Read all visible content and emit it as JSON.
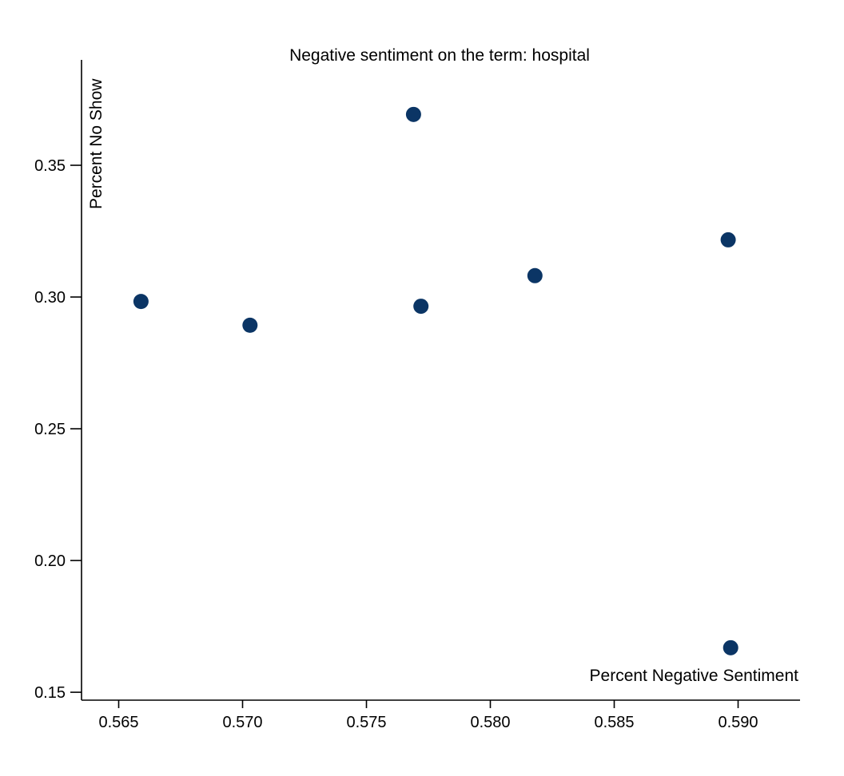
{
  "chart_data": {
    "type": "scatter",
    "title": "Negative sentiment on the term: hospital",
    "xlabel": "Percent Negative Sentiment",
    "ylabel": "Percent No Show",
    "xlim": [
      0.5635,
      0.5925
    ],
    "ylim": [
      0.147,
      0.39
    ],
    "x_ticks": [
      "0.565",
      "0.570",
      "0.575",
      "0.580",
      "0.585",
      "0.590"
    ],
    "y_ticks": [
      "0.15",
      "0.20",
      "0.25",
      "0.30",
      "0.35"
    ],
    "grid": false,
    "marker_color": "#0b3565",
    "points": [
      {
        "x": 0.5659,
        "y": 0.2983
      },
      {
        "x": 0.5703,
        "y": 0.2893
      },
      {
        "x": 0.5769,
        "y": 0.3693
      },
      {
        "x": 0.5772,
        "y": 0.2965
      },
      {
        "x": 0.5818,
        "y": 0.3081
      },
      {
        "x": 0.5896,
        "y": 0.3217
      },
      {
        "x": 0.5897,
        "y": 0.1669
      }
    ]
  }
}
